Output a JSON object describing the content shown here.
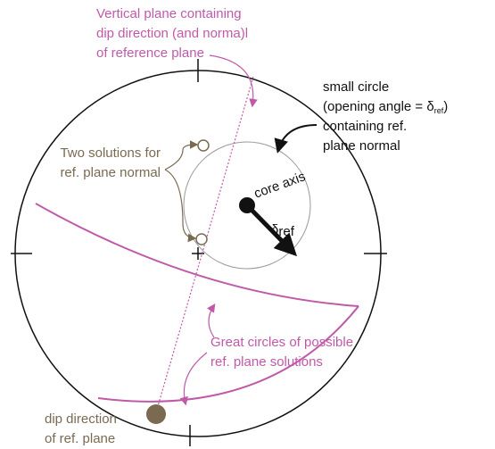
{
  "vertical_plane_label": [
    "Vertical plane containing",
    "dip direction (and norma)l",
    "of reference plane"
  ],
  "small_circle_label": {
    "line1": "small circle",
    "line2": "(opening angle = δ",
    "line2_sub": "ref",
    "line2_end": ")",
    "line3": "containing ref.",
    "line4": "plane normal"
  },
  "two_solutions_label": [
    "Two solutions for",
    "ref. plane normal"
  ],
  "core_axis_label": "core axis",
  "delta_label": {
    "symbol": "δ",
    "sub": "ref"
  },
  "great_circles_label": [
    "Great circles of possible",
    "ref. plane solutions"
  ],
  "dip_direction_label": [
    "dip direction",
    "of ref. plane"
  ]
}
